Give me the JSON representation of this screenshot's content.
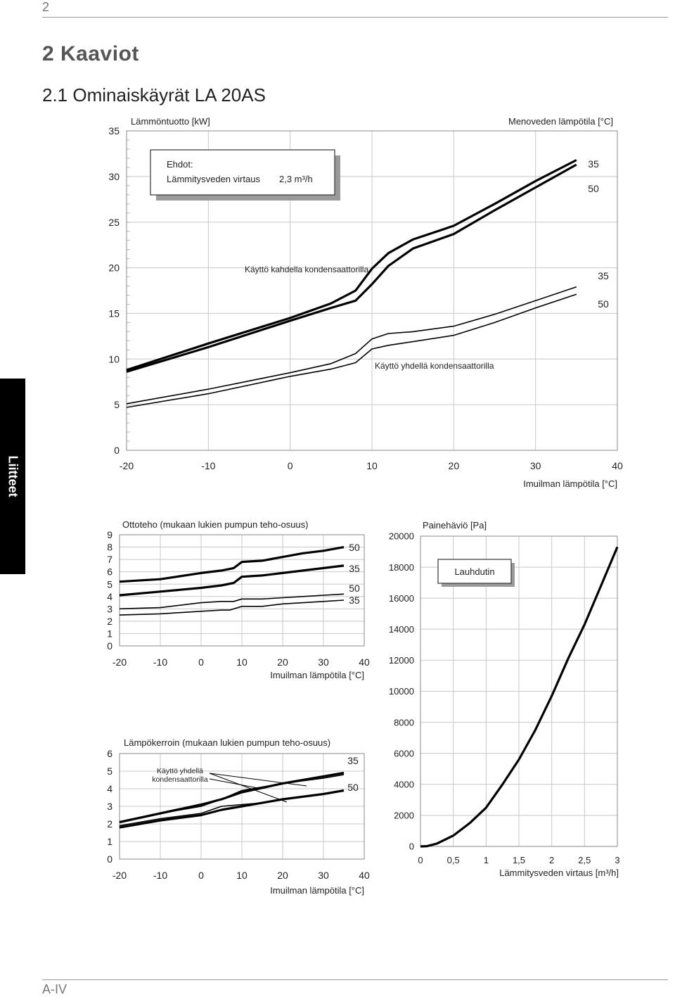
{
  "page": {
    "number": "2",
    "footer": "A-IV",
    "side_tab": "Liitteet"
  },
  "headings": {
    "h1": "2  Kaaviot",
    "h2": "2.1   Ominaiskäyrät LA 20AS"
  },
  "chart_data": [
    {
      "type": "line",
      "title": "Lämmöntuotto [kW]",
      "legend_title": "Menoveden lämpötila [°C]",
      "xlabel": "Imuilman lämpötila [°C]",
      "xlim": [
        -20,
        40
      ],
      "ylim": [
        0,
        35
      ],
      "xticks": [
        "-20",
        "-10",
        "0",
        "10",
        "20",
        "30",
        "40"
      ],
      "yticks": [
        "0",
        "5",
        "10",
        "15",
        "20",
        "25",
        "30",
        "35"
      ],
      "conditions": {
        "heading": "Ehdot:",
        "label": "Lämmitysveden virtaus",
        "value": "2,3 m³/h"
      },
      "annotations": [
        "Käyttö kahdella kondensaattorilla",
        "Käyttö yhdellä kondensaattorilla"
      ],
      "series": [
        {
          "name": "35",
          "group": "Käyttö kahdella kondensaattorilla",
          "bold": true,
          "x": [
            -20,
            -10,
            0,
            5,
            8,
            10,
            12,
            15,
            20,
            25,
            30,
            35
          ],
          "y": [
            8.8,
            11.7,
            14.5,
            16.1,
            17.5,
            19.9,
            21.6,
            23.1,
            24.6,
            27.0,
            29.5,
            31.8
          ]
        },
        {
          "name": "50",
          "group": "Käyttö kahdella kondensaattorilla",
          "bold": true,
          "x": [
            -20,
            -10,
            0,
            5,
            8,
            10,
            12,
            15,
            20,
            25,
            30,
            35
          ],
          "y": [
            8.6,
            11.3,
            14.2,
            15.6,
            16.4,
            18.2,
            20.2,
            22.1,
            23.7,
            26.3,
            28.8,
            31.3
          ]
        },
        {
          "name": "35",
          "group": "Käyttö yhdellä kondensaattorilla",
          "bold": false,
          "x": [
            -20,
            -10,
            0,
            5,
            8,
            10,
            12,
            15,
            20,
            25,
            30,
            35
          ],
          "y": [
            5.1,
            6.7,
            8.5,
            9.5,
            10.6,
            12.2,
            12.8,
            13.0,
            13.6,
            14.9,
            16.4,
            17.9
          ]
        },
        {
          "name": "50",
          "group": "Käyttö yhdellä kondensaattorilla",
          "bold": false,
          "x": [
            -20,
            -10,
            0,
            5,
            8,
            10,
            12,
            15,
            20,
            25,
            30,
            35
          ],
          "y": [
            4.7,
            6.2,
            8.1,
            8.9,
            9.6,
            11.1,
            11.5,
            11.9,
            12.6,
            14.0,
            15.6,
            17.1
          ]
        }
      ]
    },
    {
      "type": "line",
      "title": "Ottoteho (mukaan lukien  pumpun teho-osuus)",
      "xlabel": "Imuilman lämpötila [°C]",
      "xlim": [
        -20,
        40
      ],
      "ylim": [
        0,
        9
      ],
      "xticks": [
        "-20",
        "-10",
        "0",
        "10",
        "20",
        "30",
        "40"
      ],
      "yticks": [
        "0",
        "1",
        "2",
        "3",
        "4",
        "5",
        "6",
        "7",
        "8",
        "9"
      ],
      "series": [
        {
          "name": "50",
          "bold": true,
          "x": [
            -20,
            -10,
            0,
            5,
            8,
            10,
            15,
            20,
            25,
            30,
            35
          ],
          "y": [
            5.2,
            5.4,
            5.9,
            6.1,
            6.3,
            6.8,
            6.9,
            7.2,
            7.5,
            7.7,
            8.0
          ]
        },
        {
          "name": "35",
          "bold": true,
          "x": [
            -20,
            -10,
            0,
            5,
            8,
            10,
            15,
            20,
            25,
            30,
            35
          ],
          "y": [
            4.1,
            4.4,
            4.7,
            4.9,
            5.1,
            5.6,
            5.7,
            5.9,
            6.1,
            6.3,
            6.5
          ]
        },
        {
          "name": "50",
          "bold": false,
          "x": [
            -20,
            -10,
            0,
            5,
            8,
            10,
            15,
            20,
            25,
            30,
            35
          ],
          "y": [
            3.0,
            3.1,
            3.5,
            3.6,
            3.6,
            3.8,
            3.8,
            3.9,
            4.0,
            4.1,
            4.2
          ]
        },
        {
          "name": "35",
          "bold": false,
          "x": [
            -20,
            -10,
            0,
            5,
            7,
            10,
            15,
            20,
            25,
            30,
            35
          ],
          "y": [
            2.5,
            2.6,
            2.8,
            2.9,
            2.9,
            3.2,
            3.2,
            3.4,
            3.5,
            3.6,
            3.7
          ]
        }
      ]
    },
    {
      "type": "line",
      "title": "Painehäviö [Pa]",
      "legend": "Lauhdutin",
      "xlabel": "Lämmitysveden virtaus [m³/h]",
      "xlim": [
        0,
        3
      ],
      "ylim": [
        0,
        20000
      ],
      "xticks": [
        "0",
        "0,5",
        "1",
        "1,5",
        "2",
        "2,5",
        "3"
      ],
      "yticks": [
        "0",
        "2000",
        "4000",
        "6000",
        "8000",
        "10000",
        "12000",
        "14000",
        "16000",
        "18000",
        "20000"
      ],
      "series": [
        {
          "name": "Lauhdutin",
          "bold": true,
          "x": [
            0,
            0.1,
            0.25,
            0.5,
            0.75,
            1.0,
            1.25,
            1.5,
            1.75,
            2.0,
            2.25,
            2.5,
            2.75,
            3.0
          ],
          "y": [
            0,
            20,
            180,
            700,
            1500,
            2500,
            4000,
            5600,
            7500,
            9700,
            12100,
            14300,
            16800,
            19300
          ]
        }
      ]
    },
    {
      "type": "line",
      "title": "Lämpökerroin (mukaan lukien  pumpun teho-osuus)",
      "xlabel": "Imuilman lämpötila [°C]",
      "xlim": [
        -20,
        40
      ],
      "ylim": [
        0,
        6
      ],
      "xticks": [
        "-20",
        "-10",
        "0",
        "10",
        "20",
        "30",
        "40"
      ],
      "yticks": [
        "0",
        "1",
        "2",
        "3",
        "4",
        "5",
        "6"
      ],
      "annotation": [
        "Käyttö yhdellä",
        "kondensaattorilla"
      ],
      "series": [
        {
          "name": "35",
          "bold": true,
          "x": [
            -20,
            -10,
            0,
            5,
            10,
            20,
            30,
            35
          ],
          "y": [
            2.1,
            2.6,
            3.1,
            3.4,
            3.8,
            4.3,
            4.7,
            4.9
          ]
        },
        {
          "name": "50",
          "bold": true,
          "x": [
            -20,
            -10,
            0,
            5,
            10,
            20,
            30,
            35
          ],
          "y": [
            1.8,
            2.2,
            2.5,
            2.8,
            3.0,
            3.4,
            3.7,
            3.9
          ]
        },
        {
          "name": "35",
          "bold": false,
          "x": [
            -20,
            -10,
            0,
            5,
            10,
            15,
            20,
            30,
            35
          ],
          "y": [
            2.1,
            2.6,
            3.0,
            3.4,
            3.9,
            4.1,
            4.3,
            4.6,
            4.8
          ]
        },
        {
          "name": "50",
          "bold": false,
          "x": [
            -20,
            -10,
            0,
            5,
            10,
            15,
            20,
            30,
            35
          ],
          "y": [
            1.9,
            2.3,
            2.6,
            3.0,
            3.1,
            3.2,
            3.4,
            3.7,
            3.9
          ]
        }
      ]
    }
  ]
}
